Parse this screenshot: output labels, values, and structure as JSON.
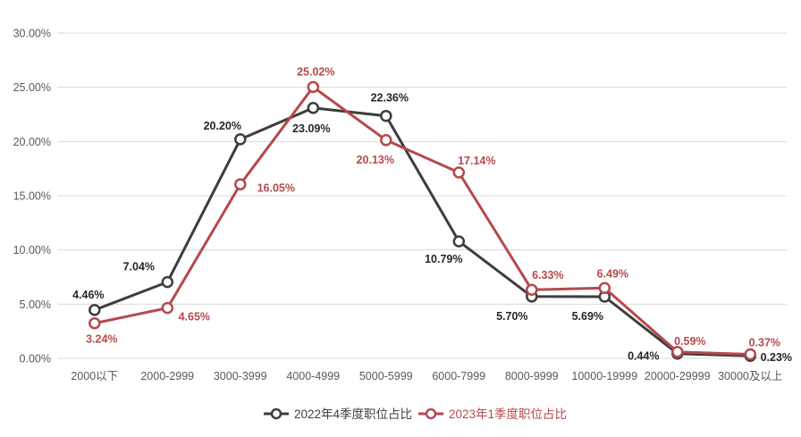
{
  "chart_data": {
    "type": "line",
    "title": "",
    "xlabel": "",
    "ylabel": "",
    "categories": [
      "2000以下",
      "2000-2999",
      "3000-3999",
      "4000-4999",
      "5000-5999",
      "6000-7999",
      "8000-9999",
      "10000-19999",
      "20000-29999",
      "30000及以上"
    ],
    "series": [
      {
        "name": "2022年4季度职位占比",
        "color": "#3d3d3d",
        "label_color": "#262626",
        "values": [
          4.46,
          7.04,
          20.2,
          23.09,
          22.36,
          10.79,
          5.7,
          5.69,
          0.44,
          0.23
        ],
        "labels": [
          "4.46%",
          "7.04%",
          "20.20%",
          "23.09%",
          "22.36%",
          "10.79%",
          "5.70%",
          "5.69%",
          "0.44%",
          "0.23%"
        ],
        "label_offsets": [
          [
            -7,
            -13
          ],
          [
            -32,
            -13
          ],
          [
            -20,
            -11
          ],
          [
            -2,
            27
          ],
          [
            4,
            -16
          ],
          [
            -17,
            24
          ],
          [
            -22,
            26
          ],
          [
            -19,
            26
          ],
          [
            -38,
            7
          ],
          [
            29,
            6
          ]
        ]
      },
      {
        "name": "2023年1季度职位占比",
        "color": "#b5494c",
        "label_color": "#b5494c",
        "values": [
          3.24,
          4.65,
          16.05,
          25.02,
          20.13,
          17.14,
          6.33,
          6.49,
          0.59,
          0.37
        ],
        "labels": [
          "3.24%",
          "4.65%",
          "16.05%",
          "25.02%",
          "20.13%",
          "17.14%",
          "6.33%",
          "6.49%",
          "0.59%",
          "0.37%"
        ],
        "label_offsets": [
          [
            8,
            22
          ],
          [
            30,
            14
          ],
          [
            40,
            8
          ],
          [
            3,
            -13
          ],
          [
            -12,
            26
          ],
          [
            20,
            -9
          ],
          [
            18,
            -12
          ],
          [
            9,
            -12
          ],
          [
            14,
            -8
          ],
          [
            16,
            -9
          ]
        ]
      }
    ],
    "y_ticks": [
      "30.00%",
      "25.00%",
      "20.00%",
      "15.00%",
      "10.00%",
      "5.00%",
      "0.00%"
    ],
    "ylim": [
      0,
      30
    ],
    "grid": true,
    "legend_position": "bottom",
    "marker": "open-circle"
  },
  "colors": {
    "background": "#ffffff",
    "gridline": "#d9d9d9",
    "axis_text": "#595959",
    "marker_fill": "#ffffff"
  }
}
